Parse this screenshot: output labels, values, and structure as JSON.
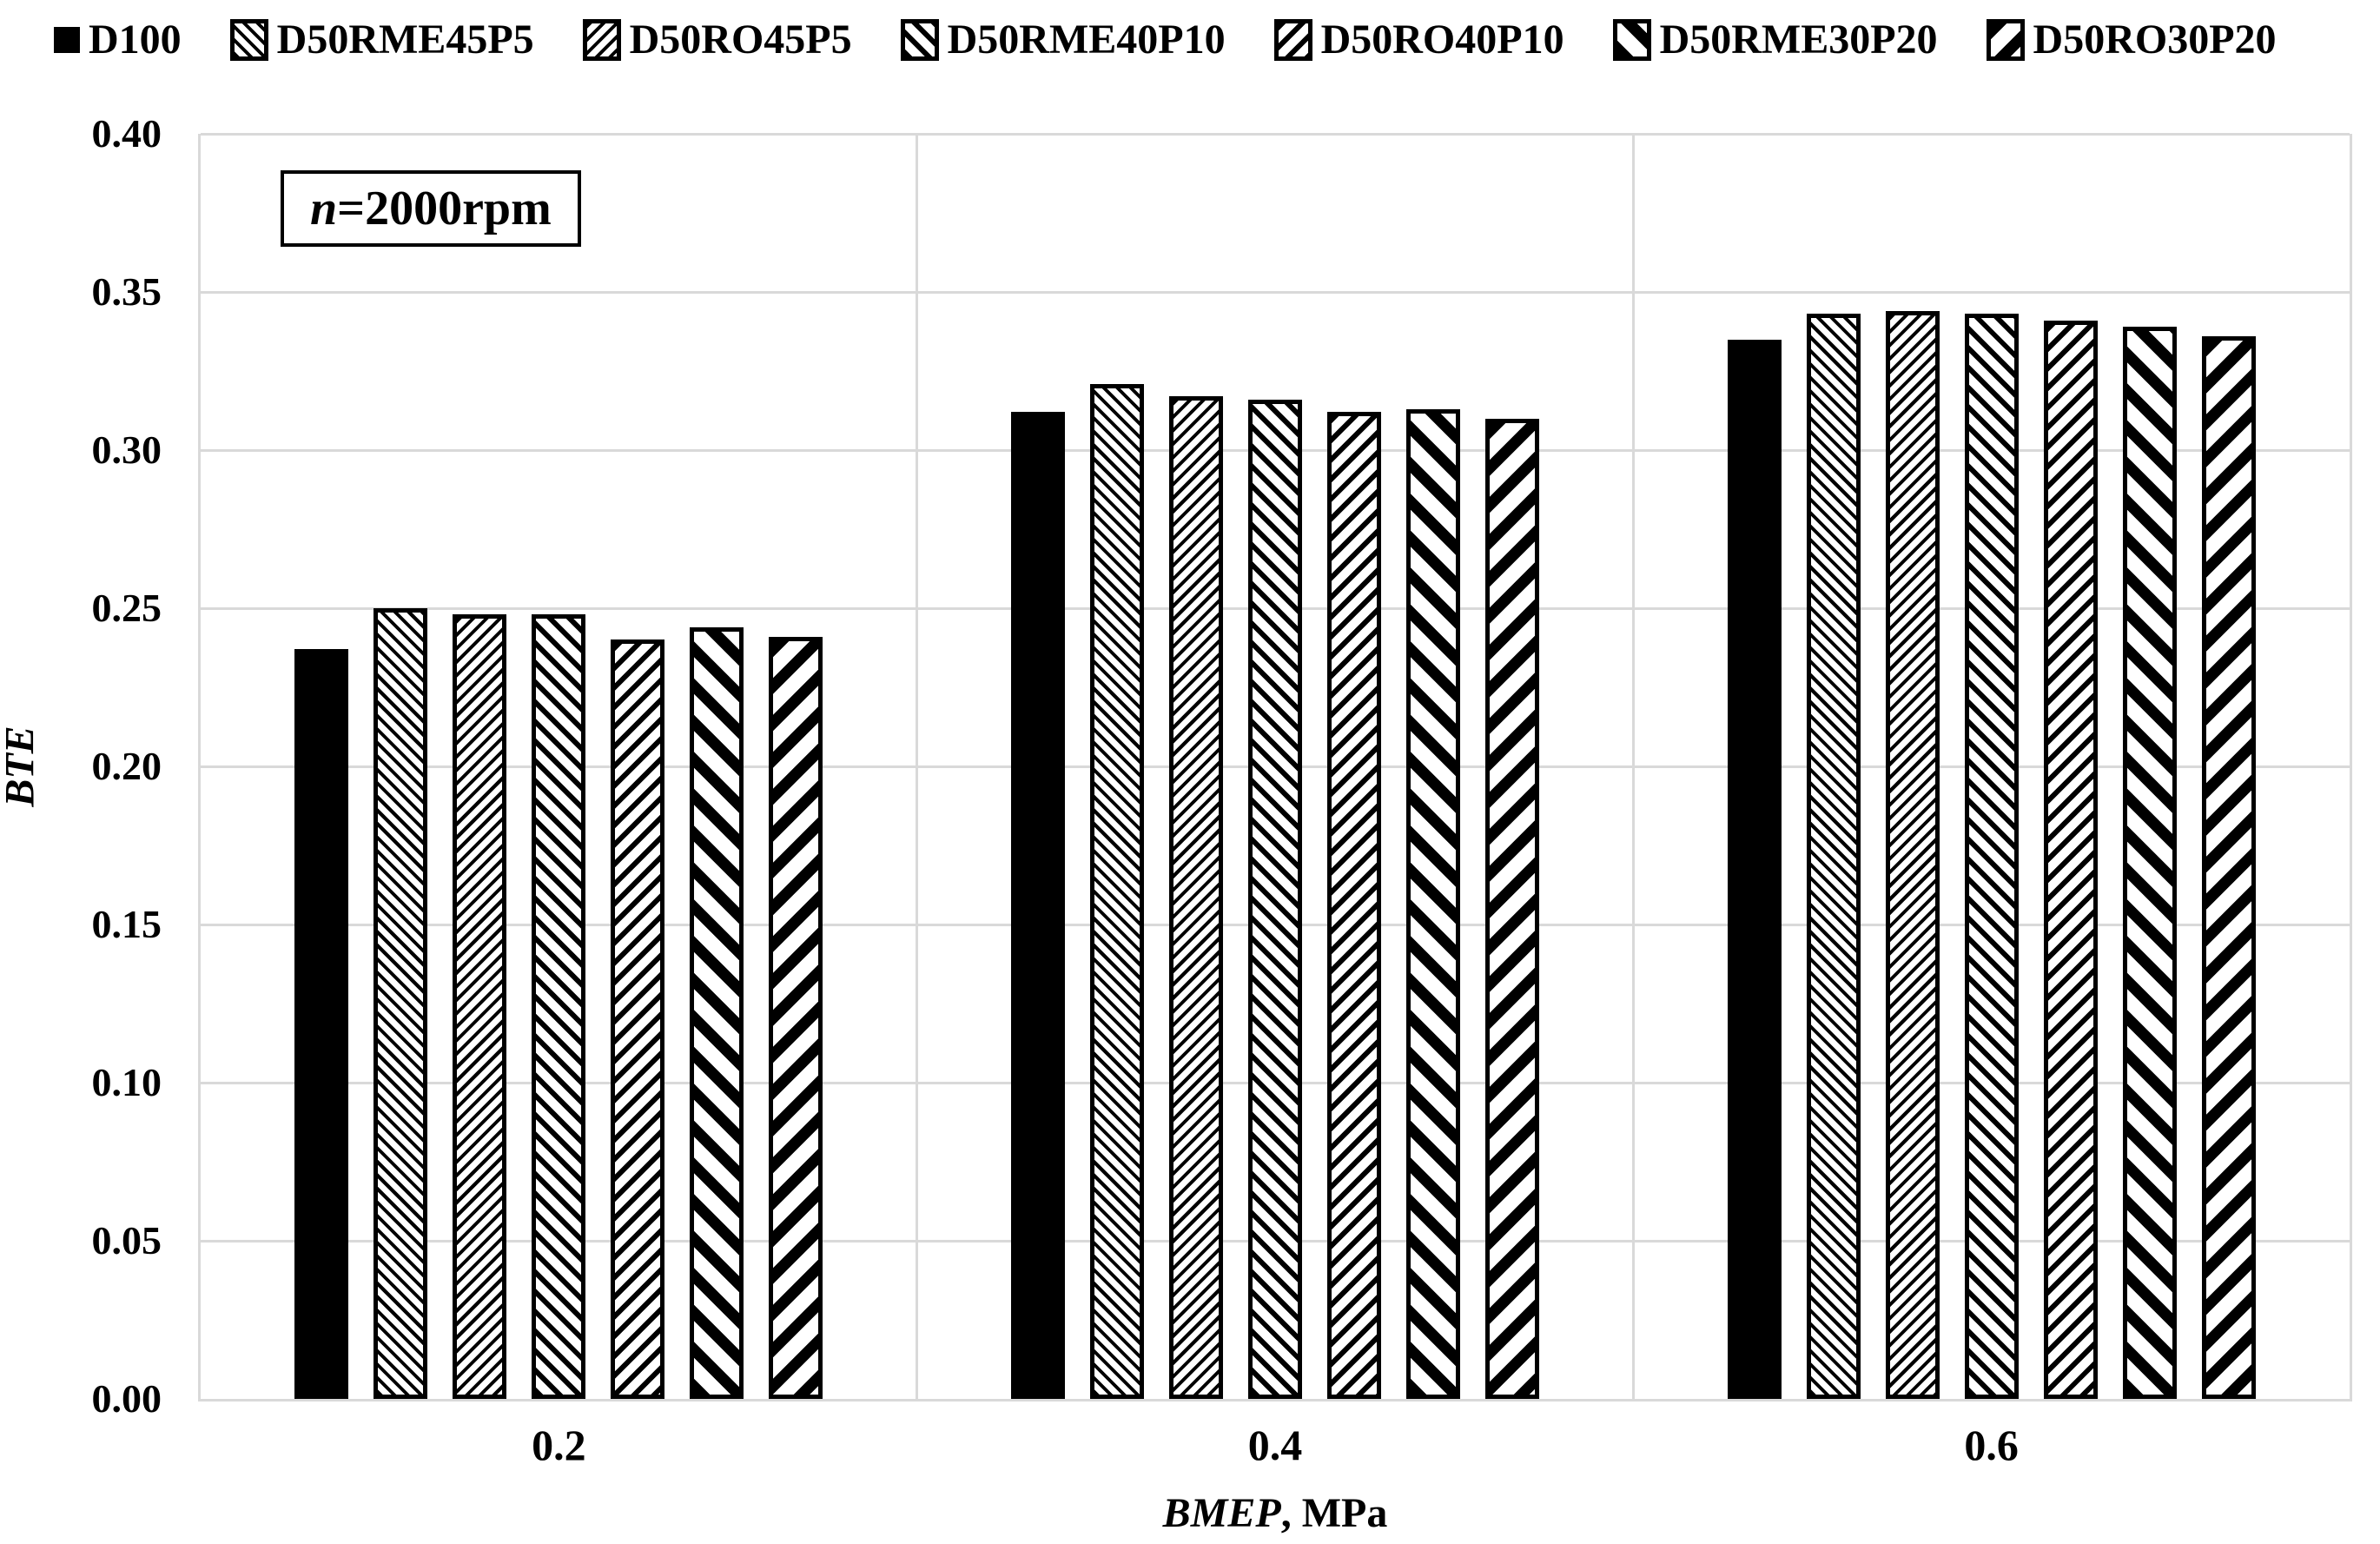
{
  "annotation": {
    "italic": "n",
    "rest": "=2000rpm"
  },
  "colors": {
    "bar_ink": "#000000",
    "grid": "#d9d9d9",
    "background": "#ffffff"
  },
  "chart_data": {
    "type": "bar",
    "title": "",
    "legend_position": "top",
    "grid": true,
    "x_axis": {
      "label_italic": "BMEP",
      "label_rest": ", MPa",
      "categories": [
        "0.2",
        "0.4",
        "0.6"
      ]
    },
    "y_axis": {
      "label": "BTE",
      "min": 0.0,
      "max": 0.4,
      "tick_step": 0.05,
      "tick_labels": [
        "0.00",
        "0.05",
        "0.10",
        "0.15",
        "0.20",
        "0.25",
        "0.30",
        "0.35",
        "0.40"
      ]
    },
    "series": [
      {
        "name": "D100",
        "pattern": "solid",
        "values": [
          0.237,
          0.312,
          0.335
        ]
      },
      {
        "name": "D50RME45P5",
        "pattern": "back-fine",
        "values": [
          0.25,
          0.321,
          0.343
        ]
      },
      {
        "name": "D50RO45P5",
        "pattern": "fwd-fine",
        "values": [
          0.248,
          0.317,
          0.344
        ]
      },
      {
        "name": "D50RME40P10",
        "pattern": "back-med",
        "values": [
          0.248,
          0.316,
          0.343
        ]
      },
      {
        "name": "D50RO40P10",
        "pattern": "fwd-med",
        "values": [
          0.24,
          0.312,
          0.341
        ]
      },
      {
        "name": "D50RME30P20",
        "pattern": "back-bold",
        "values": [
          0.244,
          0.313,
          0.339
        ]
      },
      {
        "name": "D50RO30P20",
        "pattern": "fwd-bold",
        "values": [
          0.241,
          0.31,
          0.336
        ]
      }
    ]
  }
}
